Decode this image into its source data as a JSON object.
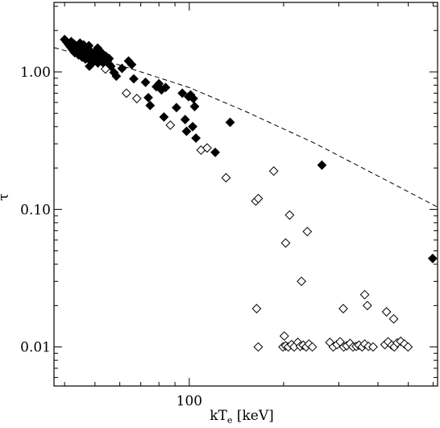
{
  "chart_data": {
    "type": "scatter",
    "title": "",
    "xlabel": "kT",
    "xlabel_sub": "e",
    "xlabel_unit": " [keV]",
    "ylabel": "τ",
    "xscale": "log",
    "yscale": "log",
    "xlim": [
      37,
      620
    ],
    "ylim": [
      0.0052,
      3.2
    ],
    "grid": false,
    "x_tick_labels": [
      {
        "value": 100,
        "label": "100"
      }
    ],
    "y_tick_labels": [
      {
        "value": 0.01,
        "label": "0.01"
      },
      {
        "value": 0.1,
        "label": "0.10"
      },
      {
        "value": 1.0,
        "label": "1.00"
      }
    ],
    "series": [
      {
        "marker": "filled-diamond",
        "color": "#000000",
        "points": [
          [
            40.0,
            1.72
          ],
          [
            40.6,
            1.65
          ],
          [
            41.2,
            1.58
          ],
          [
            41.7,
            1.52
          ],
          [
            42.0,
            1.66
          ],
          [
            42.4,
            1.45
          ],
          [
            42.8,
            1.6
          ],
          [
            43.1,
            1.38
          ],
          [
            43.5,
            1.55
          ],
          [
            44.0,
            1.48
          ],
          [
            44.3,
            1.33
          ],
          [
            44.8,
            1.62
          ],
          [
            45.1,
            1.42
          ],
          [
            45.5,
            1.28
          ],
          [
            45.8,
            1.52
          ],
          [
            46.2,
            1.36
          ],
          [
            46.6,
            1.24
          ],
          [
            47.0,
            1.46
          ],
          [
            47.4,
            1.31
          ],
          [
            47.8,
            1.55
          ],
          [
            48.2,
            1.21
          ],
          [
            48.6,
            1.4
          ],
          [
            49.0,
            1.29
          ],
          [
            49.4,
            1.18
          ],
          [
            49.8,
            1.36
          ],
          [
            50.3,
            1.25
          ],
          [
            50.7,
            1.44
          ],
          [
            51.1,
            1.16
          ],
          [
            51.6,
            1.33
          ],
          [
            52.0,
            1.22
          ],
          [
            52.5,
            1.38
          ],
          [
            53.0,
            1.27
          ],
          [
            53.6,
            1.14
          ],
          [
            54.2,
            1.3
          ],
          [
            54.8,
            1.2
          ],
          [
            55.5,
            1.25
          ],
          [
            56.2,
            1.1
          ],
          [
            43.8,
            1.4
          ],
          [
            46.0,
            1.57
          ],
          [
            48.0,
            1.1
          ],
          [
            51.0,
            1.49
          ],
          [
            57.5,
            0.99
          ],
          [
            58.5,
            0.93
          ],
          [
            61.0,
            1.06
          ],
          [
            64.0,
            1.2
          ],
          [
            65.5,
            1.13
          ],
          [
            66.5,
            0.89
          ],
          [
            72.5,
            0.84
          ],
          [
            74.0,
            0.65
          ],
          [
            75.0,
            0.57
          ],
          [
            78.5,
            0.78
          ],
          [
            80.0,
            0.82
          ],
          [
            81.5,
            0.74
          ],
          [
            83.0,
            0.47
          ],
          [
            84.0,
            0.77
          ],
          [
            91.0,
            0.55
          ],
          [
            95.0,
            0.7
          ],
          [
            97.0,
            0.45
          ],
          [
            98.0,
            0.37
          ],
          [
            99.5,
            0.66
          ],
          [
            101.0,
            0.68
          ],
          [
            103.0,
            0.64
          ],
          [
            104.0,
            0.56
          ],
          [
            102.5,
            0.4
          ],
          [
            105.0,
            0.33
          ],
          [
            121.0,
            0.26
          ],
          [
            135.0,
            0.43
          ],
          [
            265.0,
            0.21
          ],
          [
            598.0,
            0.044
          ]
        ]
      },
      {
        "marker": "open-diamond",
        "color": "#000000",
        "points": [
          [
            54.0,
            1.05
          ],
          [
            63.0,
            0.7
          ],
          [
            68.0,
            0.64
          ],
          [
            87.0,
            0.41
          ],
          [
            109.0,
            0.27
          ],
          [
            114.0,
            0.28
          ],
          [
            131.0,
            0.17
          ],
          [
            163.0,
            0.115
          ],
          [
            166.0,
            0.12
          ],
          [
            186.0,
            0.19
          ],
          [
            209.0,
            0.091
          ],
          [
            203.0,
            0.057
          ],
          [
            228.0,
            0.03
          ],
          [
            238.0,
            0.069
          ],
          [
            164.0,
            0.019
          ],
          [
            201.0,
            0.012
          ],
          [
            310.0,
            0.019
          ],
          [
            363.0,
            0.024
          ],
          [
            370.0,
            0.02
          ],
          [
            426.0,
            0.018
          ],
          [
            449.0,
            0.016
          ],
          [
            166.0,
            0.01
          ],
          [
            199.0,
            0.01
          ],
          [
            203.0,
            0.0102
          ],
          [
            207.0,
            0.01
          ],
          [
            212.0,
            0.0104
          ],
          [
            216.0,
            0.01
          ],
          [
            222.0,
            0.0108
          ],
          [
            226.0,
            0.0101
          ],
          [
            231.0,
            0.0103
          ],
          [
            236.0,
            0.01
          ],
          [
            241.0,
            0.0105
          ],
          [
            247.0,
            0.01
          ],
          [
            281.0,
            0.0108
          ],
          [
            288.0,
            0.01
          ],
          [
            296.0,
            0.0104
          ],
          [
            303.0,
            0.0109
          ],
          [
            311.0,
            0.01
          ],
          [
            318.0,
            0.0102
          ],
          [
            326.0,
            0.0106
          ],
          [
            333.0,
            0.01
          ],
          [
            341.0,
            0.0101
          ],
          [
            348.0,
            0.0103
          ],
          [
            356.0,
            0.01
          ],
          [
            363.0,
            0.0105
          ],
          [
            373.0,
            0.0101
          ],
          [
            386.0,
            0.01
          ],
          [
            421.0,
            0.0104
          ],
          [
            431.0,
            0.0109
          ],
          [
            443.0,
            0.0103
          ],
          [
            451.0,
            0.01
          ],
          [
            461.0,
            0.0107
          ],
          [
            473.0,
            0.011
          ],
          [
            486.0,
            0.0105
          ],
          [
            499.0,
            0.01
          ]
        ]
      },
      {
        "marker": "dashed-line",
        "color": "#000000",
        "points": [
          [
            37,
            1.5
          ],
          [
            60,
            1.12
          ],
          [
            100,
            0.77
          ],
          [
            150,
            0.52
          ],
          [
            250,
            0.305
          ],
          [
            400,
            0.175
          ],
          [
            620,
            0.104
          ]
        ]
      }
    ]
  }
}
